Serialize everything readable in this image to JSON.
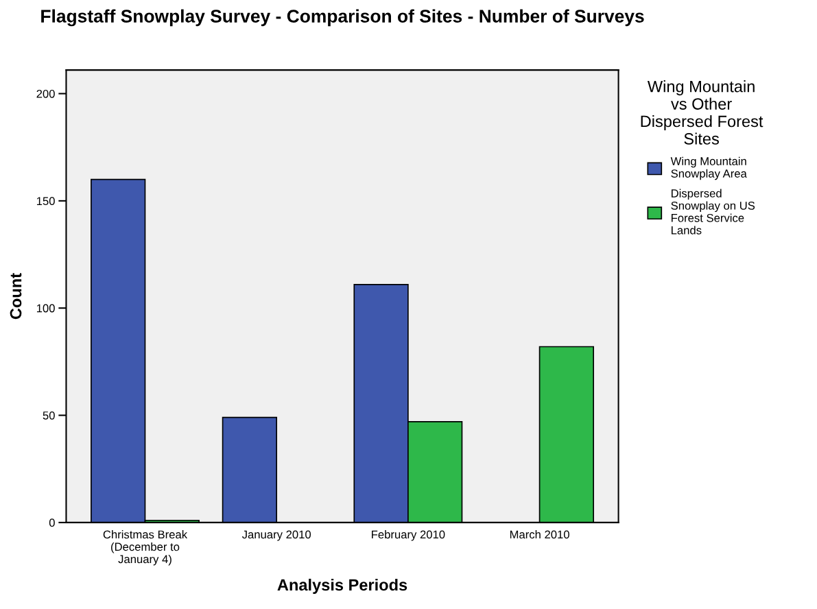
{
  "chart_data": {
    "type": "bar",
    "title": "Flagstaff Snowplay Survey - Comparison of Sites - Number of Surveys",
    "xlabel": "Analysis Periods",
    "ylabel": "Count",
    "legend_title": "Wing Mountain\nvs Other\nDispersed Forest\nSites",
    "categories": [
      "Christmas Break\n(December to\nJanuary 4)",
      "January 2010",
      "February 2010",
      "March 2010"
    ],
    "series": [
      {
        "name": "Wing Mountain\nSnowplay Area",
        "color": "#3f58ad",
        "values": [
          160,
          49,
          111,
          null
        ]
      },
      {
        "name": "Dispersed\nSnowplay on US\nForest Service\nLands",
        "color": "#2eb84a",
        "values": [
          1,
          null,
          47,
          82
        ]
      }
    ],
    "ylim": [
      0,
      211
    ],
    "yticks": [
      0,
      50,
      100,
      150,
      200
    ],
    "grid": false,
    "legend": "top right"
  }
}
